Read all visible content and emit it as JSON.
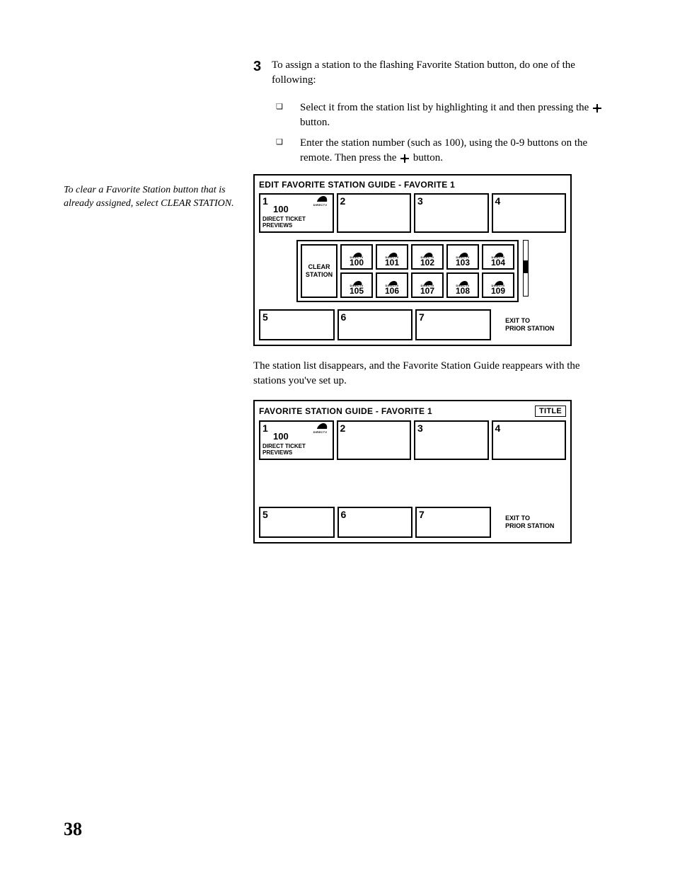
{
  "step": {
    "number": "3",
    "intro": "To assign a station to the flashing Favorite Station button, do one of the following:",
    "bullets": [
      {
        "pre": "Select it from the station list by highlighting it and then pressing the ",
        "post": " button."
      },
      {
        "pre": "Enter the station number (such as 100), using the 0-9 buttons on the remote. Then press the ",
        "post": " button."
      }
    ]
  },
  "side_note": "To clear a Favorite Station button that is already assigned, select CLEAR STATION.",
  "panel1": {
    "title": "EDIT FAVORITE STATION GUIDE - FAVORITE 1",
    "slots_top": [
      {
        "n": "1",
        "ch": "100",
        "label": "DIRECT TICKET\nPREVIEWS",
        "logo": true
      },
      {
        "n": "2"
      },
      {
        "n": "3"
      },
      {
        "n": "4"
      }
    ],
    "clear": "CLEAR\nSTATION",
    "stations": [
      "100",
      "101",
      "102",
      "103",
      "104",
      "105",
      "106",
      "107",
      "108",
      "109"
    ],
    "slots_bottom": [
      {
        "n": "5"
      },
      {
        "n": "6"
      },
      {
        "n": "7"
      },
      {
        "exit": "EXIT TO\nPRIOR STATION"
      }
    ],
    "logo_text": "DIRECTV"
  },
  "post_text": "The station list disappears, and the Favorite Station Guide reappears with the stations you've set up.",
  "panel2": {
    "title": "FAVORITE STATION GUIDE - FAVORITE 1",
    "title_badge": "TITLE",
    "slots_top": [
      {
        "n": "1",
        "ch": "100",
        "label": "DIRECT TICKET\nPREVIEWS",
        "logo": true
      },
      {
        "n": "2"
      },
      {
        "n": "3"
      },
      {
        "n": "4"
      }
    ],
    "slots_bottom": [
      {
        "n": "5"
      },
      {
        "n": "6"
      },
      {
        "n": "7"
      },
      {
        "exit": "EXIT TO\nPRIOR STATION"
      }
    ]
  },
  "page_number": "38"
}
